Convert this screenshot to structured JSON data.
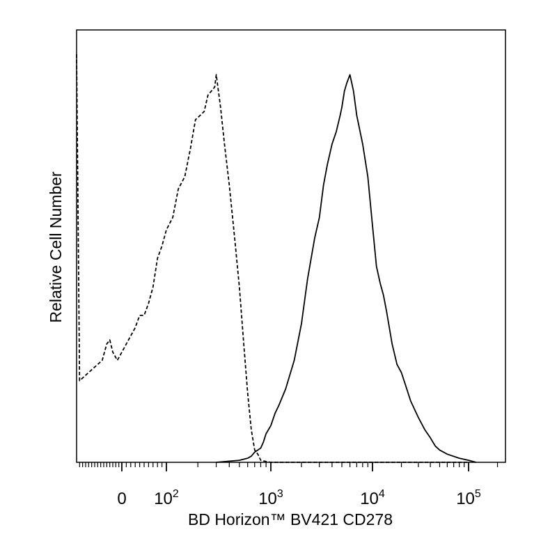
{
  "chart_data": {
    "type": "line",
    "title": "",
    "xlabel": "BD Horizon™ BV421 CD278",
    "ylabel": "Relative Cell Number",
    "x_scale": "logicle",
    "xlim": [
      -150,
      200000
    ],
    "ylim": [
      0,
      100
    ],
    "grid": false,
    "legend": "none",
    "x_tick_labels": [
      {
        "value": 0,
        "base": "0",
        "exp": ""
      },
      {
        "value": 100,
        "base": "10",
        "exp": "2"
      },
      {
        "value": 1000,
        "base": "10",
        "exp": "3"
      },
      {
        "value": 10000,
        "base": "10",
        "exp": "4"
      },
      {
        "value": 100000,
        "base": "10",
        "exp": "5"
      }
    ],
    "series": [
      {
        "style": "dashed",
        "color": "#000000",
        "x": [
          -150,
          -140,
          -125,
          -110,
          -95,
          -80,
          -65,
          -50,
          -40,
          -30,
          -15,
          0,
          10,
          20,
          30,
          40,
          50,
          60,
          70,
          80,
          90,
          100,
          115,
          130,
          150,
          170,
          190,
          210,
          230,
          250,
          270,
          290,
          300,
          330,
          360,
          400,
          450,
          500,
          550,
          600,
          650,
          700,
          750,
          800,
          900,
          1000,
          2000,
          5000,
          20000,
          100000
        ],
        "y": [
          100,
          20,
          21,
          22,
          23,
          24,
          25,
          29,
          30,
          27,
          25,
          27,
          29,
          31,
          33,
          36,
          36,
          39,
          43,
          50,
          53,
          57,
          60,
          67,
          70,
          77,
          84,
          85,
          86,
          90,
          91,
          92,
          95,
          87,
          78,
          68,
          55,
          43,
          29,
          17,
          8,
          3,
          2,
          0.5,
          0.2,
          0,
          0,
          0,
          0,
          0
        ]
      },
      {
        "style": "solid",
        "color": "#000000",
        "x": [
          300,
          500,
          600,
          650,
          700,
          750,
          800,
          850,
          900,
          1000,
          1100,
          1200,
          1400,
          1700,
          2000,
          2300,
          2700,
          3000,
          3300,
          3600,
          4000,
          4400,
          4800,
          5000,
          5300,
          5600,
          6000,
          6500,
          7000,
          8000,
          9000,
          10000,
          11000,
          12000,
          13000,
          14000,
          16000,
          18000,
          20000,
          22000,
          25000,
          30000,
          35000,
          40000,
          45000,
          50000,
          60000,
          80000,
          100000,
          120000
        ],
        "y": [
          0,
          0.5,
          1,
          1.5,
          2.5,
          3,
          3.5,
          5,
          7,
          9,
          12,
          14,
          18,
          25,
          34,
          45,
          55,
          60,
          68,
          73,
          78,
          81,
          85,
          87,
          91,
          93,
          95,
          91,
          85,
          78,
          70,
          58,
          48,
          44,
          41,
          37,
          29,
          24,
          22,
          19,
          15,
          11,
          8,
          6,
          4,
          3,
          2,
          1,
          0.5,
          0
        ]
      }
    ]
  }
}
